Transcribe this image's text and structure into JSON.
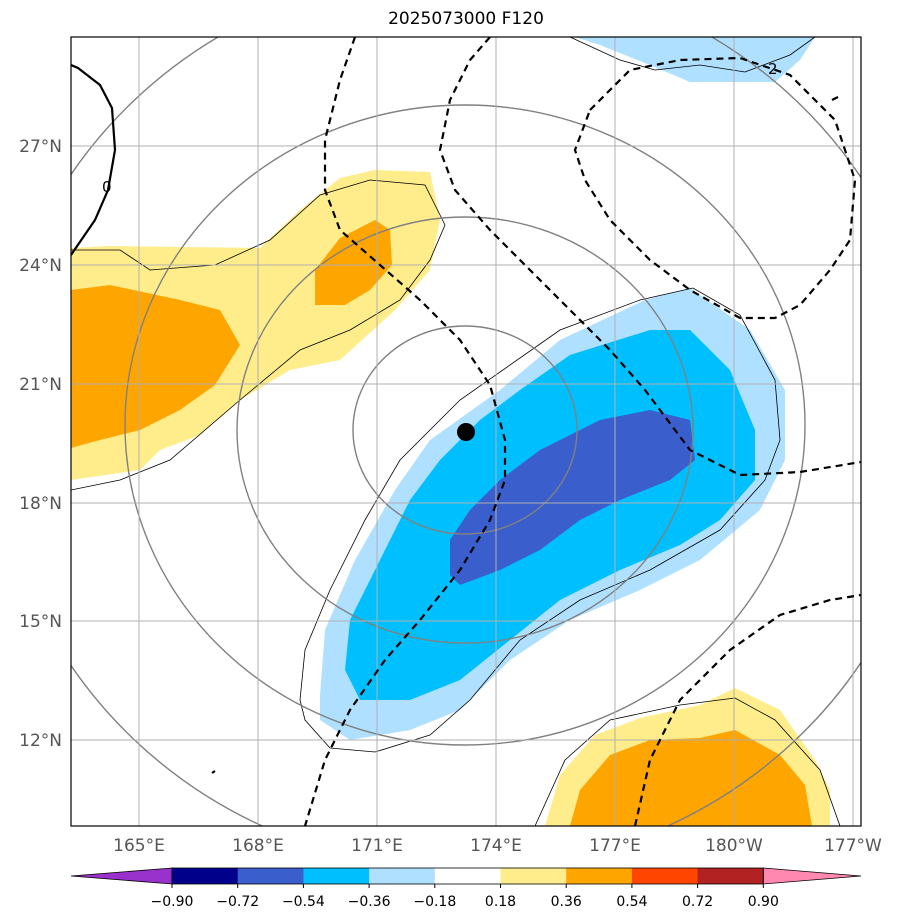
{
  "title": "2025073000 F120",
  "lat_labels": [
    "27°N",
    "24°N",
    "21°N",
    "18°N",
    "15°N",
    "12°N"
  ],
  "lon_labels": [
    "165°E",
    "168°E",
    "171°E",
    "174°E",
    "177°E",
    "180°W",
    "177°W"
  ],
  "contour_labels": {
    "zero": "0",
    "two": "2"
  },
  "colorbar": {
    "ticks": [
      "−0.90",
      "−0.72",
      "−0.54",
      "−0.36",
      "−0.18",
      "0.18",
      "0.36",
      "0.54",
      "0.72",
      "0.90"
    ],
    "colors": [
      "#9932cc",
      "#00008b",
      "#3a5fcd",
      "#00bfff",
      "#b0e0ff",
      "#ffffff",
      "#ffec8b",
      "#ffa500",
      "#ff4500",
      "#b22222",
      "#ff88b0"
    ]
  },
  "fill_colors": {
    "light_blue": "#b0e0ff",
    "blue": "#00bfff",
    "royal_blue": "#3a5fcd",
    "light_yellow": "#ffec8b",
    "orange": "#ffa500"
  },
  "center_marker": "storm-center-dot"
}
